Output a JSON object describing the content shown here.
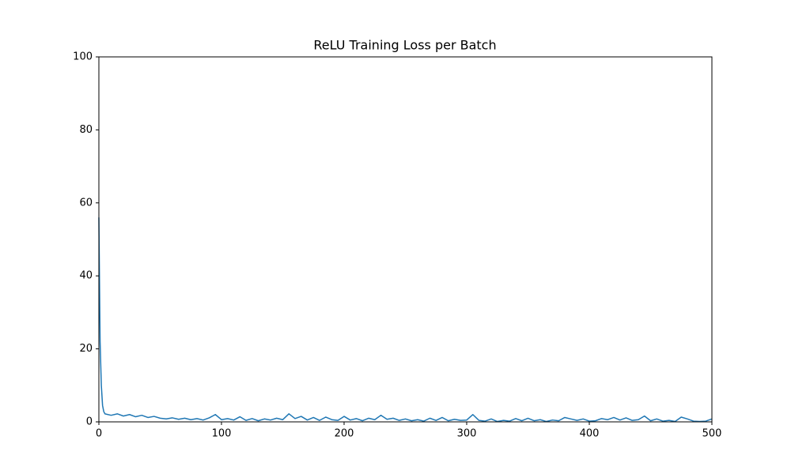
{
  "chart_data": {
    "type": "line",
    "title": "ReLU Training Loss per Batch",
    "x": [
      0,
      1,
      2,
      3,
      4,
      5,
      10,
      15,
      20,
      25,
      30,
      35,
      40,
      45,
      50,
      55,
      60,
      65,
      70,
      75,
      80,
      85,
      90,
      95,
      100,
      105,
      110,
      115,
      120,
      125,
      130,
      135,
      140,
      145,
      150,
      155,
      160,
      165,
      170,
      175,
      180,
      185,
      190,
      195,
      200,
      205,
      210,
      215,
      220,
      225,
      230,
      235,
      240,
      245,
      250,
      255,
      260,
      265,
      270,
      275,
      280,
      285,
      290,
      295,
      300,
      305,
      310,
      315,
      320,
      325,
      330,
      335,
      340,
      345,
      350,
      355,
      360,
      365,
      370,
      375,
      380,
      385,
      390,
      395,
      400,
      405,
      410,
      415,
      420,
      425,
      430,
      435,
      440,
      445,
      450,
      455,
      460,
      465,
      470,
      475,
      480,
      485,
      490,
      495,
      500
    ],
    "values": [
      56,
      22,
      10,
      4.5,
      2.8,
      2.2,
      1.8,
      2.2,
      1.6,
      2.0,
      1.4,
      1.8,
      1.2,
      1.5,
      1.0,
      0.8,
      1.1,
      0.7,
      1.0,
      0.6,
      0.9,
      0.5,
      1.1,
      2.0,
      0.6,
      0.9,
      0.5,
      1.4,
      0.4,
      0.9,
      0.3,
      0.8,
      0.5,
      1.0,
      0.6,
      2.2,
      0.9,
      1.5,
      0.5,
      1.2,
      0.4,
      1.3,
      0.6,
      0.4,
      1.5,
      0.5,
      0.9,
      0.3,
      1.0,
      0.6,
      1.8,
      0.7,
      1.0,
      0.4,
      0.8,
      0.3,
      0.6,
      0.2,
      1.0,
      0.4,
      1.2,
      0.3,
      0.7,
      0.4,
      0.5,
      2.0,
      0.4,
      0.2,
      0.8,
      0.1,
      0.4,
      0.2,
      0.9,
      0.3,
      1.0,
      0.3,
      0.6,
      0.1,
      0.5,
      0.3,
      1.2,
      0.8,
      0.4,
      0.8,
      0.2,
      0.3,
      0.9,
      0.6,
      1.2,
      0.5,
      1.1,
      0.4,
      0.6,
      1.6,
      0.3,
      0.8,
      0.2,
      0.4,
      0.1,
      1.3,
      0.8,
      0.2,
      0.1,
      0.2,
      0.8
    ],
    "color": "#1f77b4",
    "xlim": [
      0,
      500
    ],
    "xticks": [
      0,
      100,
      200,
      300,
      400,
      500
    ],
    "ylim": [
      0,
      100
    ],
    "yticks": [
      0,
      20,
      40,
      60,
      80,
      100
    ],
    "grid": false
  }
}
